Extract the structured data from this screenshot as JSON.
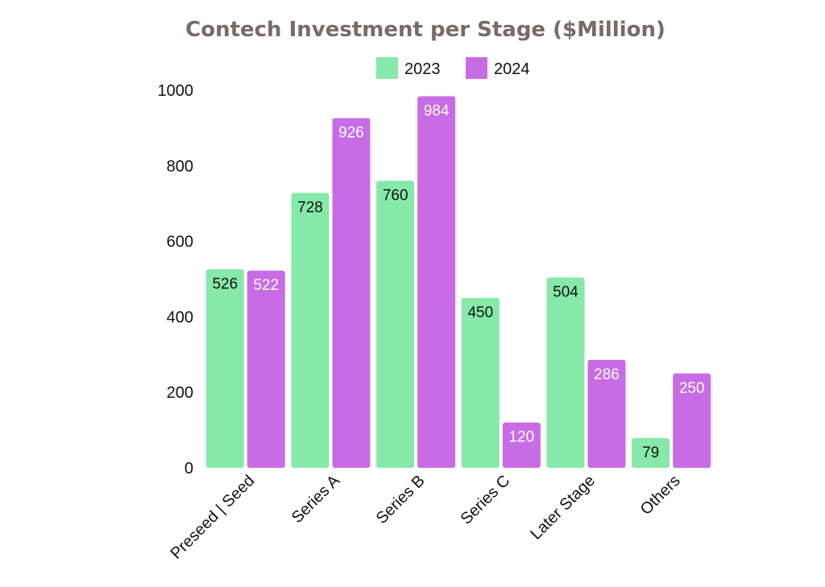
{
  "chart_data": {
    "type": "bar",
    "title": "Contech Investment per Stage ($Million)",
    "categories": [
      "Preseed | Seed",
      "Series A",
      "Series B",
      "Series C",
      "Later Stage",
      "Others"
    ],
    "series": [
      {
        "name": "2023",
        "color": "#86e9a9",
        "label_color": "#111111",
        "values": [
          526,
          728,
          760,
          450,
          504,
          79
        ]
      },
      {
        "name": "2024",
        "color": "#c86ce6",
        "label_color": "#ffffff",
        "values": [
          522,
          926,
          984,
          120,
          286,
          250
        ]
      }
    ],
    "yticks": [
      0,
      200,
      400,
      600,
      800,
      1000
    ],
    "ylim": [
      0,
      1000
    ],
    "grid": false,
    "legend_position": "top"
  }
}
